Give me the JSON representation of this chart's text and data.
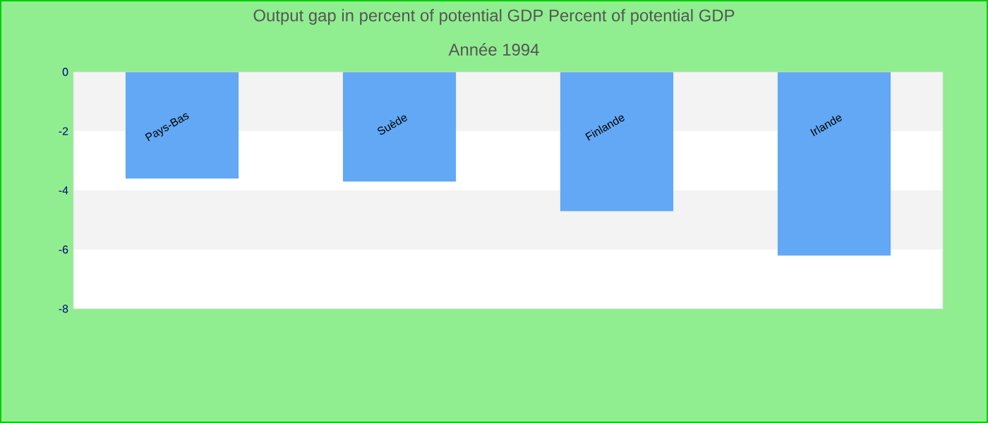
{
  "chart_data": {
    "type": "bar",
    "title": "Output gap in percent of potential GDP  Percent of potential GDP",
    "subtitle": "Année 1994",
    "categories": [
      "Pays-Bas",
      "Suède",
      "Finlande",
      "Irlande"
    ],
    "values": [
      -3.6,
      -3.7,
      -4.7,
      -6.2
    ],
    "color": "#62a8f4",
    "ylim": [
      -8,
      0
    ],
    "yticks": [
      -8,
      -6,
      -4,
      -2,
      0
    ],
    "bands": [
      {
        "axis": "y",
        "from": 0,
        "to": -2,
        "color": "#f3f3f4"
      },
      {
        "axis": "y",
        "from": -4,
        "to": -6,
        "color": "#f3f3f4"
      }
    ]
  }
}
